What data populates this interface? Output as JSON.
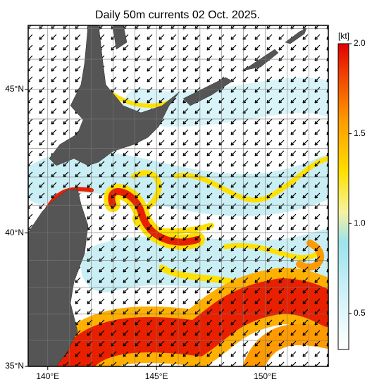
{
  "title": "Daily 50m currents 02 Oct. 2025.",
  "map": {
    "lonlim": [
      139.1,
      152.9
    ],
    "latlim": [
      35,
      47.1
    ],
    "lon_ticks": [
      {
        "value": 140,
        "label": "140°E"
      },
      {
        "value": 145,
        "label": "145°E"
      },
      {
        "value": 150,
        "label": "150°E"
      }
    ],
    "lat_ticks": [
      {
        "value": 35,
        "label": "35°N"
      },
      {
        "value": 40,
        "label": "40°N"
      },
      {
        "value": 45,
        "label": "45°N"
      }
    ]
  },
  "colorbar": {
    "unit": "[kt]",
    "lim": [
      0.3,
      2.0
    ],
    "ticks": [
      0.5,
      {
        "value": 1.0,
        "label": "1.0"
      },
      1.5,
      {
        "value": 2.0,
        "label": "2.0"
      }
    ]
  }
}
